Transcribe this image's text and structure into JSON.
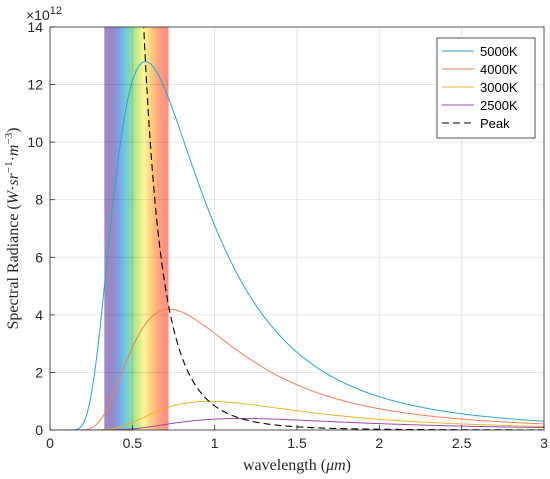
{
  "chart_data": {
    "type": "line",
    "title": "",
    "xlabel": "wavelength (μm)",
    "xlabel_parts": {
      "prefix": "wavelength (",
      "unit": "μm",
      "suffix": ")"
    },
    "ylabel": "Spectral Radiance (W·sr⁻¹·m⁻³)",
    "ylabel_parts": {
      "prefix": "Spectral Radiance (",
      "w": "W",
      "dot1": "·",
      "sr": "sr",
      "exp1": "−1",
      "dot2": "·",
      "m": "m",
      "exp2": "−3",
      "suffix": ")"
    },
    "y_multiplier": {
      "base": "×10",
      "exponent": "12"
    },
    "xlim": [
      0,
      3
    ],
    "ylim": [
      0,
      14
    ],
    "x_ticks": [
      0,
      0.5,
      1,
      1.5,
      2,
      2.5,
      3
    ],
    "x_tick_labels": [
      "0",
      "0.5",
      "1",
      "1.5",
      "2",
      "2.5",
      "3"
    ],
    "y_ticks": [
      0,
      2,
      4,
      6,
      8,
      10,
      12,
      14
    ],
    "y_tick_labels": [
      "0",
      "2",
      "4",
      "6",
      "8",
      "10",
      "12",
      "14"
    ],
    "grid": true,
    "legend_position": "top-right",
    "visible_band_um": [
      0.33,
      0.72
    ],
    "series": [
      {
        "name": "5000K",
        "temperature_K": 5000,
        "color": "#2ca3cc",
        "style": "solid"
      },
      {
        "name": "4000K",
        "temperature_K": 4000,
        "color": "#f07f5a",
        "style": "solid"
      },
      {
        "name": "3000K",
        "temperature_K": 3000,
        "color": "#f2b134",
        "style": "solid"
      },
      {
        "name": "2500K",
        "temperature_K": 2500,
        "color": "#a04aa8",
        "style": "solid"
      },
      {
        "name": "Peak",
        "color": "#000000",
        "style": "dashed"
      }
    ]
  }
}
